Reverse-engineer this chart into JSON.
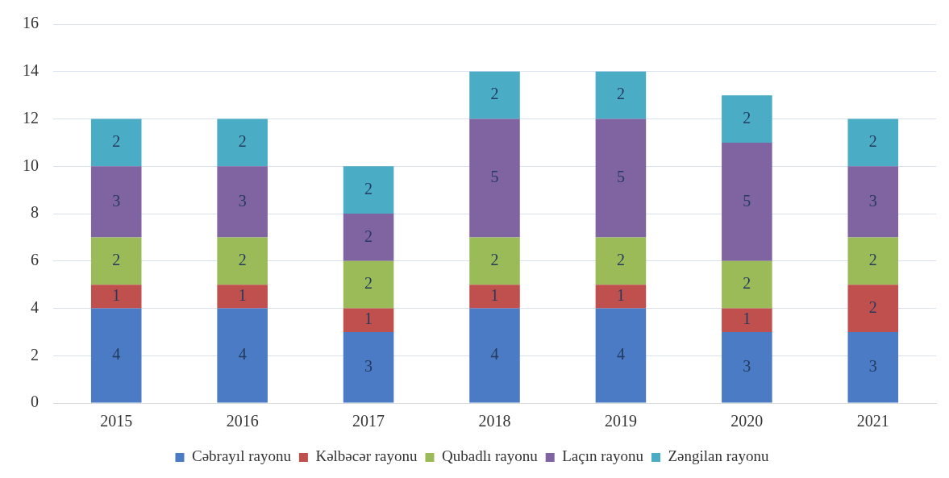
{
  "chart_data": {
    "type": "bar",
    "stacked": true,
    "categories": [
      "2015",
      "2016",
      "2017",
      "2018",
      "2019",
      "2020",
      "2021"
    ],
    "series": [
      {
        "name": "Cəbrayıl rayonu",
        "color": "#4a7bc4",
        "values": [
          4,
          4,
          3,
          4,
          4,
          3,
          3
        ]
      },
      {
        "name": "Kəlbəcər rayonu",
        "color": "#c0504d",
        "values": [
          1,
          1,
          1,
          1,
          1,
          1,
          2
        ]
      },
      {
        "name": "Qubadlı rayonu",
        "color": "#9bbb59",
        "values": [
          2,
          2,
          2,
          2,
          2,
          2,
          2
        ]
      },
      {
        "name": "Laçın rayonu",
        "color": "#8064a2",
        "values": [
          3,
          3,
          2,
          5,
          5,
          5,
          3
        ]
      },
      {
        "name": "Zəngilan rayonu",
        "color": "#4bacc6",
        "values": [
          2,
          2,
          2,
          2,
          2,
          2,
          2
        ]
      }
    ],
    "ylim": [
      0,
      16
    ],
    "yticks": [
      0,
      2,
      4,
      6,
      8,
      10,
      12,
      14,
      16
    ],
    "grid": "y",
    "legend": "bottom",
    "data_labels": true
  }
}
